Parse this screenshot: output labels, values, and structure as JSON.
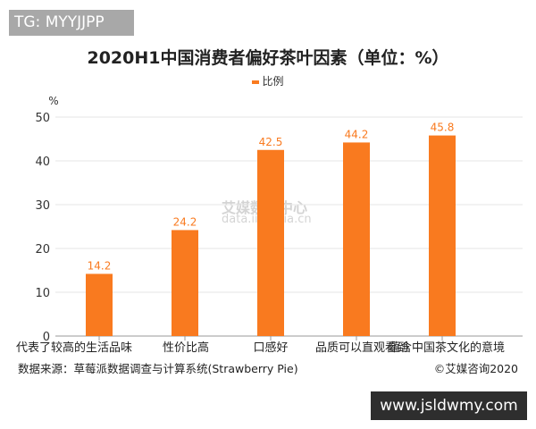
{
  "watermark_tag": "TG: MYYJJPP",
  "watermark_site": "www.jsldwmy.com",
  "watermark_center": {
    "line1": "艾媒数据中心",
    "line2": "data.iimedia.cn"
  },
  "source": "数据来源：草莓派数据调查与计算系统(Strawberry Pie)",
  "copyright": "©艾媒咨询2020",
  "chart_data": {
    "type": "bar",
    "title": "2020H1中国消费者偏好茶叶因素（单位：%）",
    "ylabel": "%",
    "xlabel": "",
    "categories": [
      "代表了较高的生活品味",
      "性价比高",
      "口感好",
      "品质可以直观看到",
      "蕴含中国茶文化的意境"
    ],
    "series": [
      {
        "name": "比例",
        "values": [
          14.2,
          24.2,
          42.5,
          44.2,
          45.8
        ],
        "color": "#f97a1f"
      }
    ],
    "ylim": [
      0,
      50
    ],
    "yticks": [
      0,
      10,
      20,
      30,
      40,
      50
    ],
    "grid": true,
    "legend": "top-center",
    "data_labels": true
  }
}
